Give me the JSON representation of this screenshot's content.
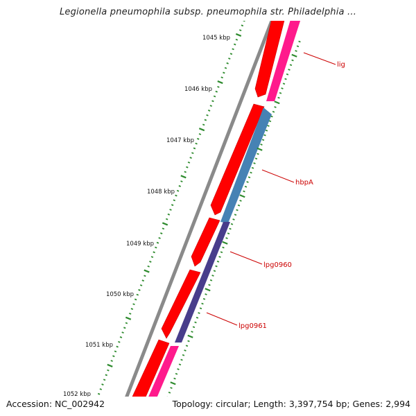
{
  "title": "Legionella pneumophila subsp. pneumophila str. Philadelphia ...",
  "footer": {
    "accession": "Accession: NC_002942",
    "summary": "Topology: circular; Length: 3,397,754 bp; Genes: 2,994"
  },
  "scale": {
    "tick_labels": [
      "1045 kbp",
      "1046 kbp",
      "1047 kbp",
      "1048 kbp",
      "1049 kbp",
      "1050 kbp",
      "1051 kbp",
      "1052 kbp"
    ]
  },
  "genes": [
    {
      "label": "lig"
    },
    {
      "label": "hbpA"
    },
    {
      "label": "lpg0960"
    },
    {
      "label": "lpg0961"
    }
  ],
  "colors": {
    "backbone": "#8a8a8a",
    "forward_strand": "#ff0000",
    "reverse_pink": "#ff1a8c",
    "reverse_blue": "#4682b4",
    "reverse_purple": "#483d8b",
    "ticks": "#2e8b2e",
    "gene_label": "#cc0000"
  }
}
